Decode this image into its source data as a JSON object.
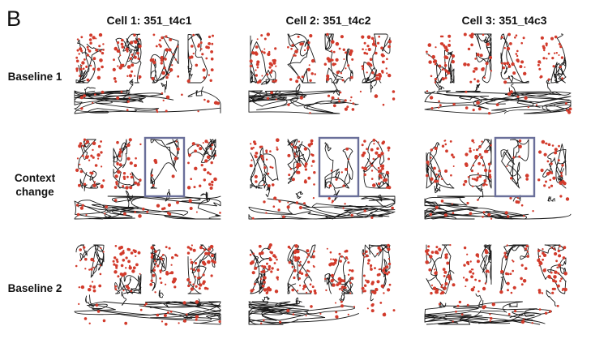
{
  "panel_letter": "B",
  "columns": [
    {
      "title": "Cell 1: 351_t4c1"
    },
    {
      "title": "Cell 2: 351_t4c2"
    },
    {
      "title": "Cell 3: 351_t4c3"
    }
  ],
  "rows": [
    {
      "label": "Baseline 1"
    },
    {
      "label": "Context\nchange"
    },
    {
      "label": "Baseline 2"
    }
  ],
  "colors": {
    "trajectory": "#1a1a1a",
    "spikes": "#d23b2c",
    "highlight_box": "#6a6f9a"
  },
  "highlighted_arm": 3
}
